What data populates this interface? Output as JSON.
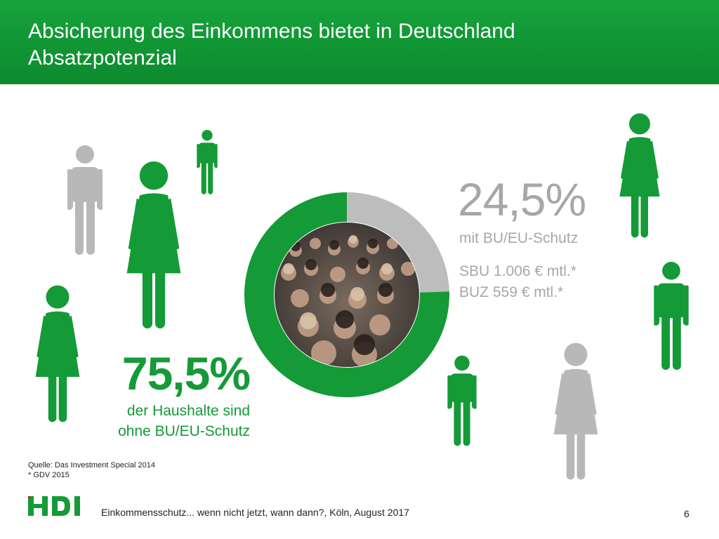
{
  "header": {
    "title_line1": "Absicherung des Einkommens bietet in Deutschland",
    "title_line2": "Absatzpotenzial"
  },
  "colors": {
    "brand_green": "#149a37",
    "header_green": "#16a33c",
    "grey": "#b8b8b8"
  },
  "chart_data": {
    "type": "pie",
    "slices": [
      {
        "label": "mit BU/EU-Schutz",
        "value": 24.5,
        "color": "#bdbdbd"
      },
      {
        "label": "ohne BU/EU-Schutz",
        "value": 75.5,
        "color": "#149a37"
      }
    ],
    "unit": "%"
  },
  "stats": {
    "with": {
      "value": "24,5%",
      "label": "mit BU/EU-Schutz",
      "line1": "SBU 1.006 € mtl.*",
      "line2": "BUZ 559 € mtl.*"
    },
    "without": {
      "value": "75,5%",
      "label_line1": "der Haushalte sind",
      "label_line2": "ohne BU/EU-Schutz"
    }
  },
  "source": {
    "line1": "Quelle: Das Investment Special 2014",
    "line2": "* GDV 2015"
  },
  "footer": {
    "logo": "HDI",
    "text": "Einkommensschutz... wenn nicht jetzt, wann dann?, Köln, August 2017",
    "page": "6"
  }
}
